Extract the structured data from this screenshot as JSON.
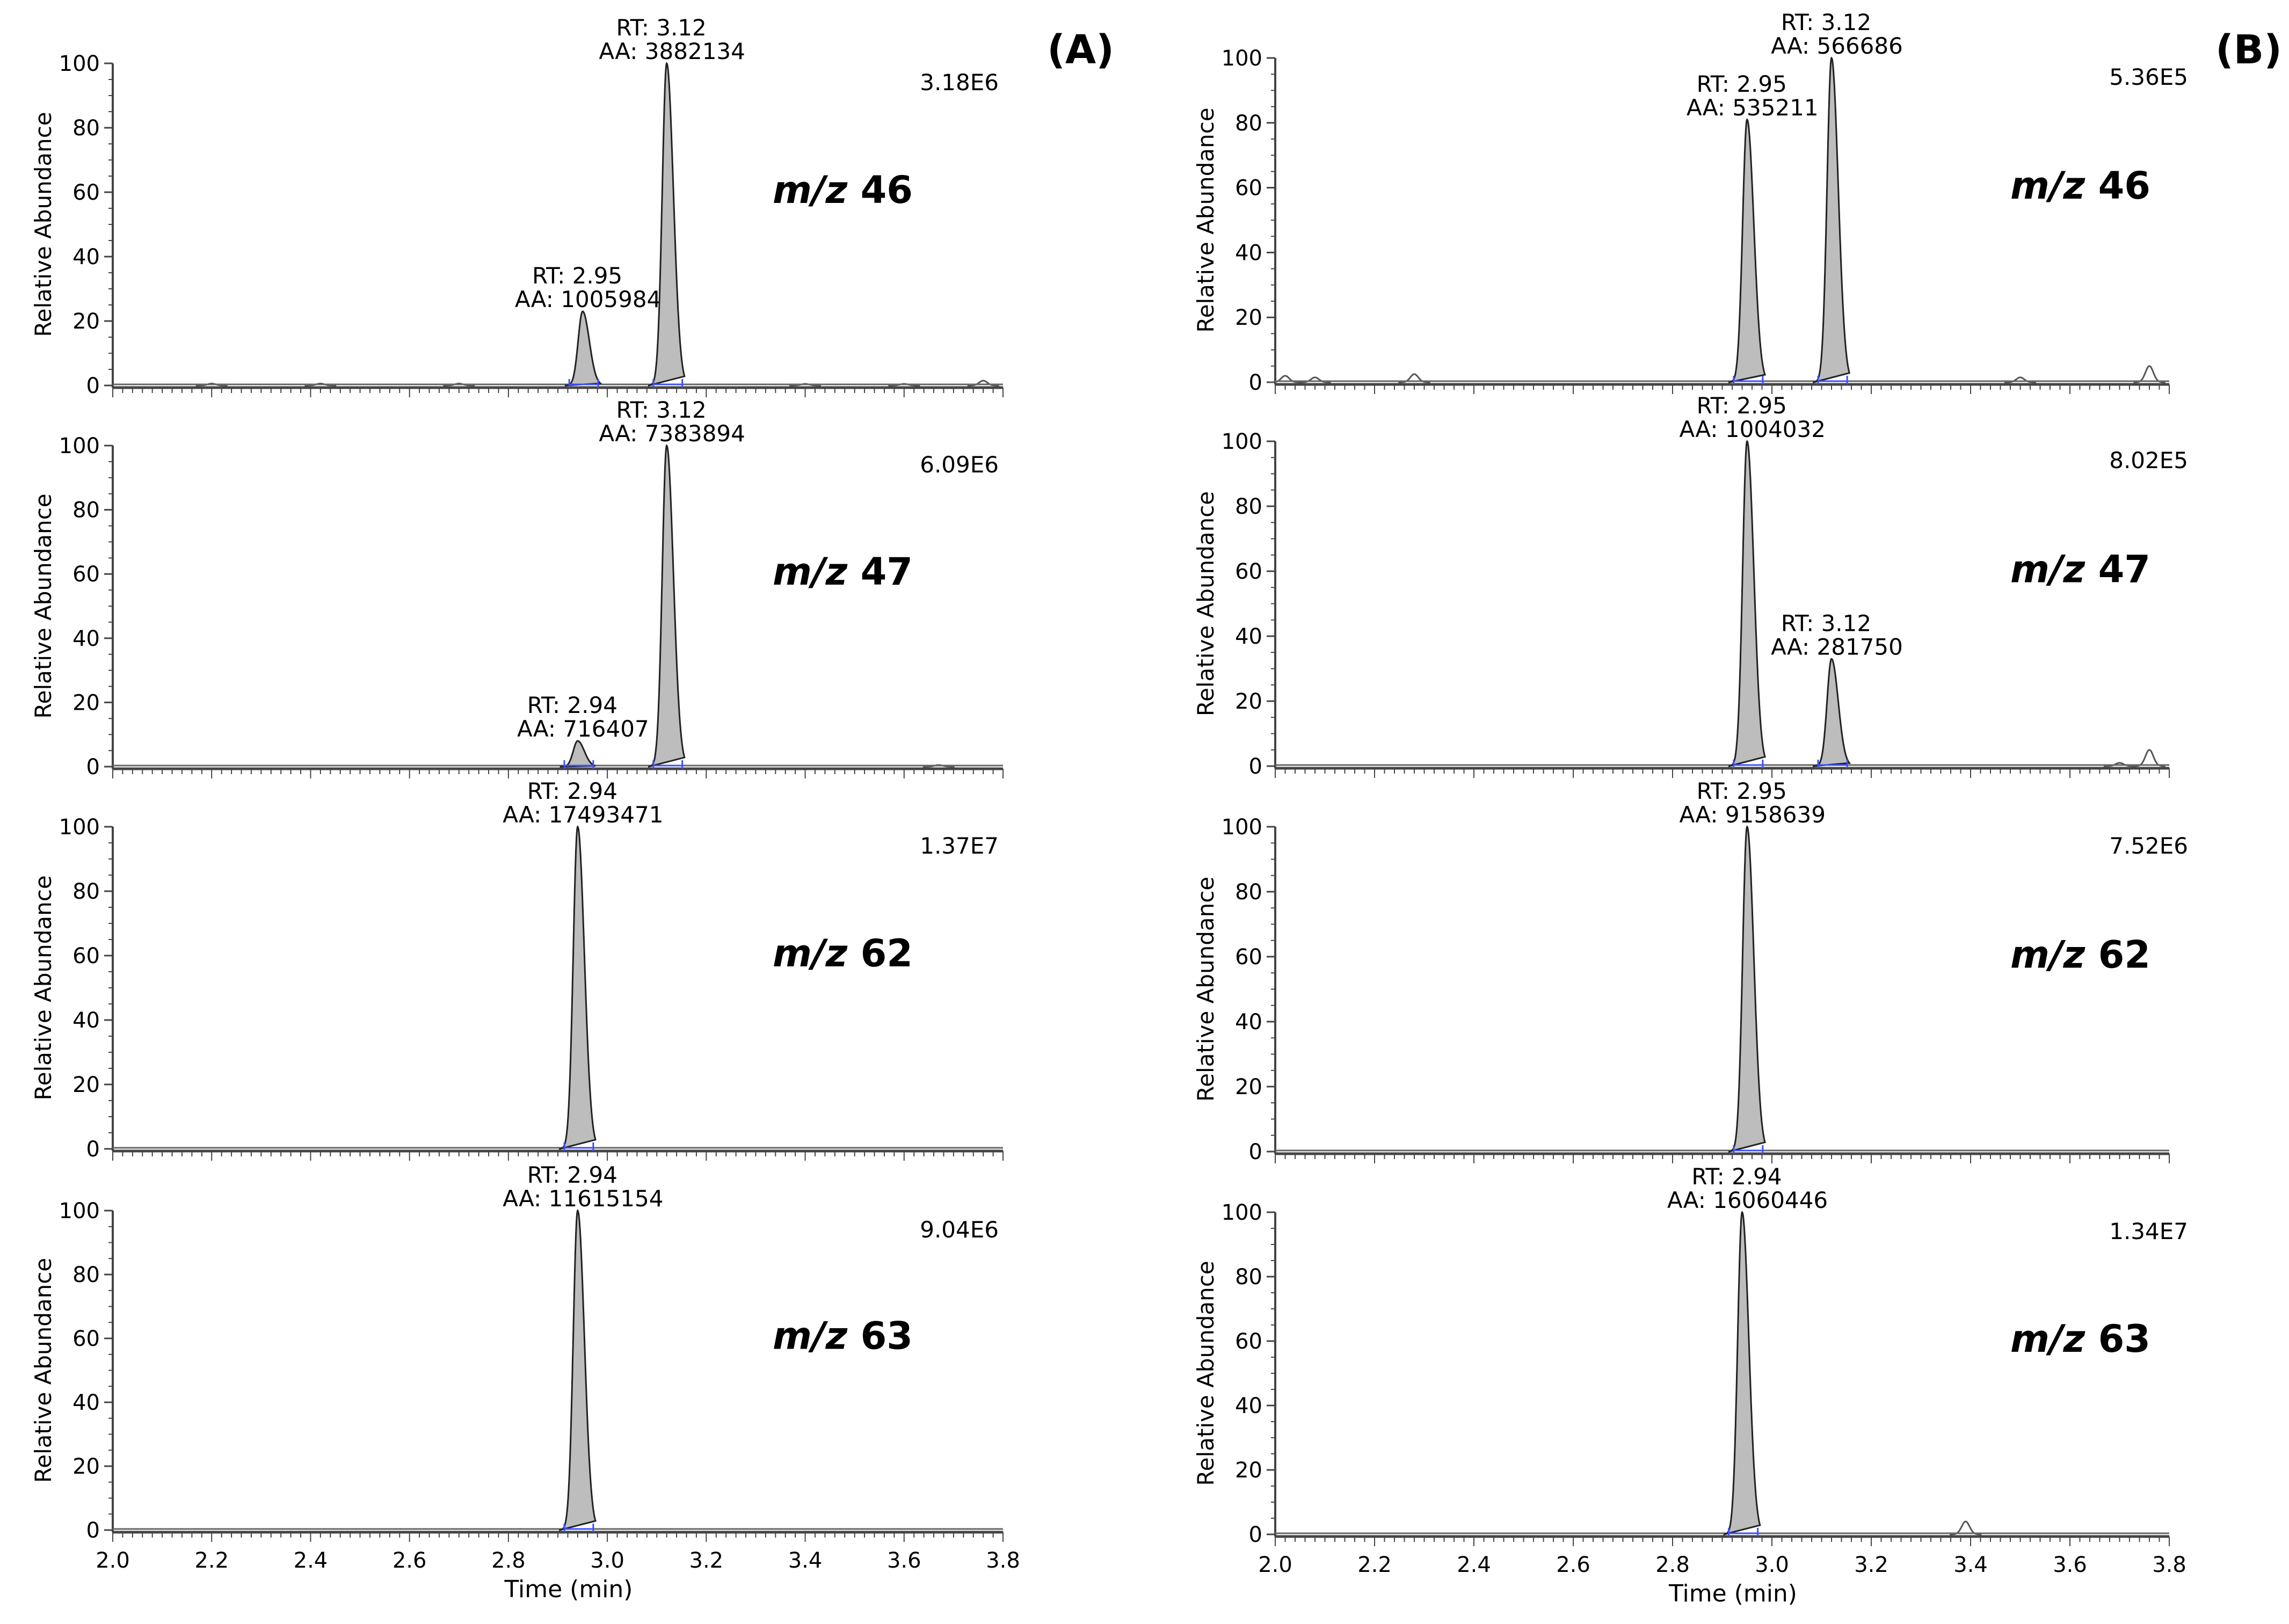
{
  "chart_data": [
    {
      "type": "line",
      "panel": "(A)",
      "xlabel": "Time (min)",
      "xlim": [
        2.0,
        3.8
      ],
      "xticks": [
        "2.0",
        "2.2",
        "2.4",
        "2.6",
        "2.8",
        "3.0",
        "3.2",
        "3.4",
        "3.6",
        "3.8"
      ],
      "traces": [
        {
          "mz": "46",
          "mz_prefix": "m/z",
          "ylabel": "Relative Abundance",
          "ylim": [
            0,
            100
          ],
          "yticks": [
            "0",
            "20",
            "40",
            "60",
            "80",
            "100"
          ],
          "normalization": "3.18E6",
          "peaks": [
            {
              "rt": 2.95,
              "height": 23,
              "width": 0.009,
              "rt_label": "RT: 2.95",
              "aa_label": "AA: 1005984"
            },
            {
              "rt": 3.12,
              "height": 100,
              "width": 0.009,
              "rt_label": "RT: 3.12",
              "aa_label": "AA: 3882134"
            }
          ],
          "minor": [
            [
              2.2,
              0.6
            ],
            [
              2.42,
              0.6
            ],
            [
              2.7,
              0.6
            ],
            [
              3.4,
              0.5
            ],
            [
              3.6,
              0.5
            ],
            [
              3.76,
              1.5
            ]
          ]
        },
        {
          "mz": "47",
          "mz_prefix": "m/z",
          "ylabel": "Relative Abundance",
          "ylim": [
            0,
            100
          ],
          "yticks": [
            "0",
            "20",
            "40",
            "60",
            "80",
            "100"
          ],
          "normalization": "6.09E6",
          "peaks": [
            {
              "rt": 2.94,
              "height": 8,
              "width": 0.009,
              "rt_label": "RT: 2.94",
              "aa_label": "AA: 716407"
            },
            {
              "rt": 3.12,
              "height": 100,
              "width": 0.009,
              "rt_label": "RT: 3.12",
              "aa_label": "AA: 7383894"
            }
          ],
          "minor": [
            [
              3.67,
              0.5
            ]
          ]
        },
        {
          "mz": "62",
          "mz_prefix": "m/z",
          "ylabel": "Relative Abundance",
          "ylim": [
            0,
            100
          ],
          "yticks": [
            "0",
            "20",
            "40",
            "60",
            "80",
            "100"
          ],
          "normalization": "1.37E7",
          "peaks": [
            {
              "rt": 2.94,
              "height": 100,
              "width": 0.009,
              "rt_label": "RT: 2.94",
              "aa_label": "AA: 17493471"
            }
          ],
          "minor": []
        },
        {
          "mz": "63",
          "mz_prefix": "m/z",
          "ylabel": "Relative Abundance",
          "ylim": [
            0,
            100
          ],
          "yticks": [
            "0",
            "20",
            "40",
            "60",
            "80",
            "100"
          ],
          "normalization": "9.04E6",
          "peaks": [
            {
              "rt": 2.94,
              "height": 100,
              "width": 0.009,
              "rt_label": "RT: 2.94",
              "aa_label": "AA: 11615154"
            }
          ],
          "minor": []
        }
      ]
    },
    {
      "type": "line",
      "panel": "(B)",
      "xlabel": "Time (min)",
      "xlim": [
        2.0,
        3.8
      ],
      "xticks": [
        "2.0",
        "2.2",
        "2.4",
        "2.6",
        "2.8",
        "3.0",
        "3.2",
        "3.4",
        "3.6",
        "3.8"
      ],
      "traces": [
        {
          "mz": "46",
          "mz_prefix": "m/z",
          "ylabel": "Relative Abundance",
          "ylim": [
            0,
            100
          ],
          "yticks": [
            "0",
            "20",
            "40",
            "60",
            "80",
            "100"
          ],
          "normalization": "5.36E5",
          "peaks": [
            {
              "rt": 2.95,
              "height": 81,
              "width": 0.009,
              "rt_label": "RT: 2.95",
              "aa_label": "AA: 535211"
            },
            {
              "rt": 3.12,
              "height": 100,
              "width": 0.009,
              "rt_label": "RT: 3.12",
              "aa_label": "AA: 566686"
            }
          ],
          "minor": [
            [
              2.02,
              2
            ],
            [
              2.08,
              1.5
            ],
            [
              2.28,
              2.5
            ],
            [
              3.5,
              1.5
            ],
            [
              3.76,
              5
            ]
          ]
        },
        {
          "mz": "47",
          "mz_prefix": "m/z",
          "ylabel": "Relative Abundance",
          "ylim": [
            0,
            100
          ],
          "yticks": [
            "0",
            "20",
            "40",
            "60",
            "80",
            "100"
          ],
          "normalization": "8.02E5",
          "peaks": [
            {
              "rt": 2.95,
              "height": 100,
              "width": 0.009,
              "rt_label": "RT: 2.95",
              "aa_label": "AA: 1004032"
            },
            {
              "rt": 3.12,
              "height": 33,
              "width": 0.009,
              "rt_label": "RT: 3.12",
              "aa_label": "AA: 281750"
            }
          ],
          "minor": [
            [
              3.7,
              1
            ],
            [
              3.76,
              5
            ]
          ]
        },
        {
          "mz": "62",
          "mz_prefix": "m/z",
          "ylabel": "Relative Abundance",
          "ylim": [
            0,
            100
          ],
          "yticks": [
            "0",
            "20",
            "40",
            "60",
            "80",
            "100"
          ],
          "normalization": "7.52E6",
          "peaks": [
            {
              "rt": 2.95,
              "height": 100,
              "width": 0.009,
              "rt_label": "RT: 2.95",
              "aa_label": "AA: 9158639"
            }
          ],
          "minor": []
        },
        {
          "mz": "63",
          "mz_prefix": "m/z",
          "ylabel": "Relative Abundance",
          "ylim": [
            0,
            100
          ],
          "yticks": [
            "0",
            "20",
            "40",
            "60",
            "80",
            "100"
          ],
          "normalization": "1.34E7",
          "peaks": [
            {
              "rt": 2.94,
              "height": 100,
              "width": 0.009,
              "rt_label": "RT: 2.94",
              "aa_label": "AA: 16060446"
            }
          ],
          "minor": [
            [
              3.39,
              4
            ]
          ]
        }
      ]
    }
  ]
}
